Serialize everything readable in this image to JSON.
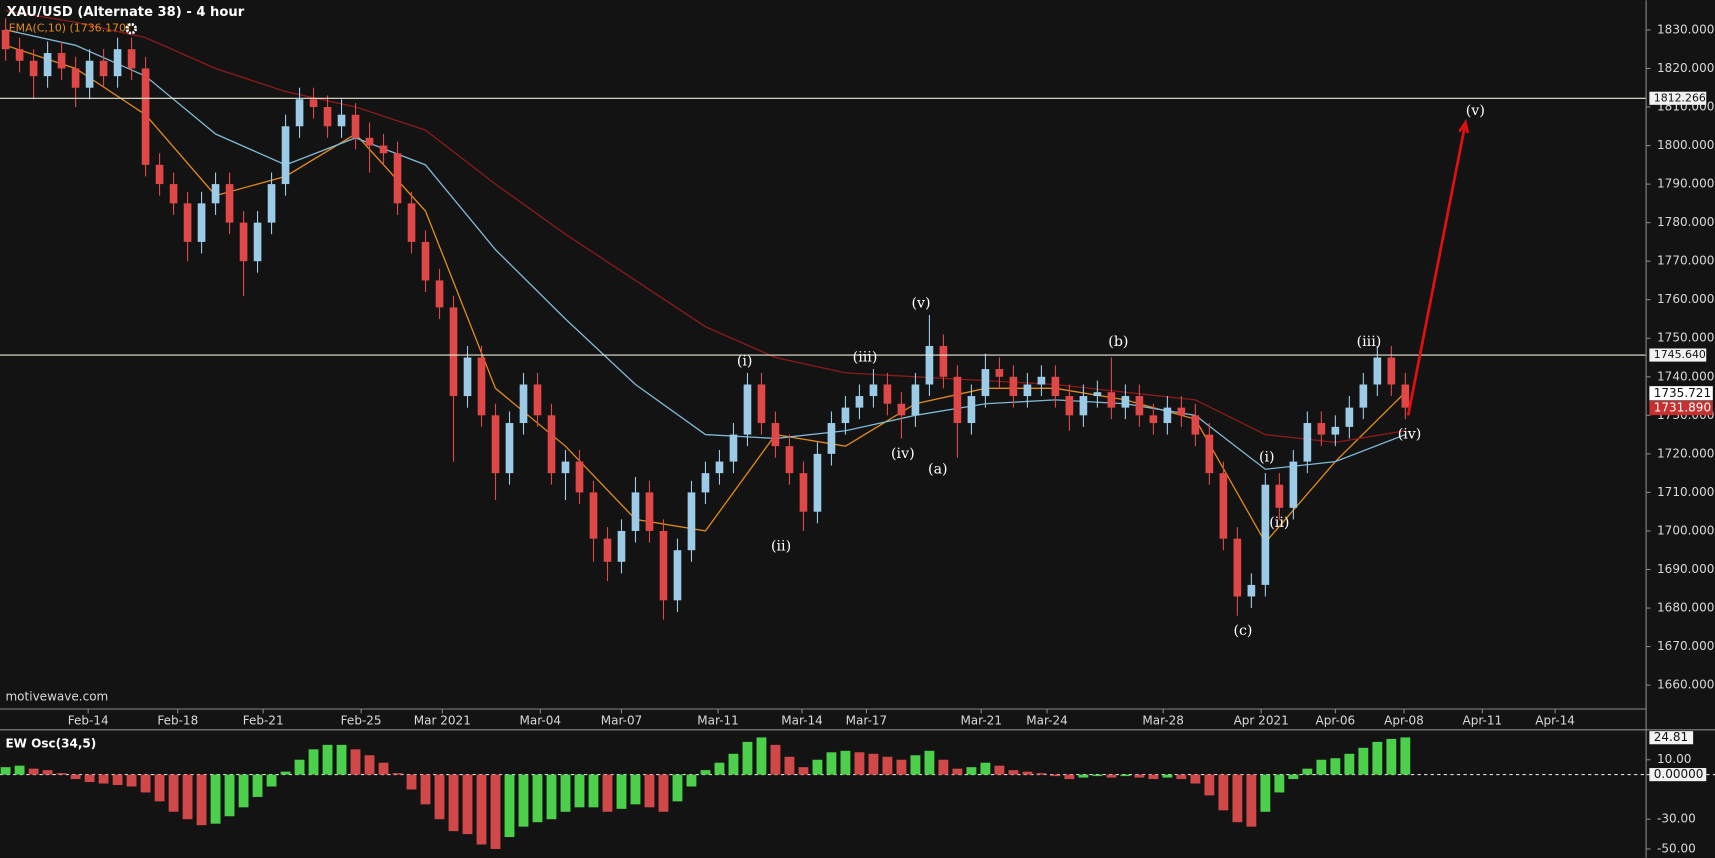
{
  "chart_data": [
    {
      "type": "candlestick",
      "title": "XAU/USD (Alternate 38) - 4 hour",
      "indicator_label": "EMA(C,10) (1736.170)",
      "watermark": "motivewave.com",
      "up_color": "#9ccbe8",
      "down_color": "#e04848",
      "xlim": [
        -0.4,
        117.2
      ],
      "ylim": [
        1653.8,
        1837.7
      ],
      "xticks": [
        {
          "value": 5.9,
          "label": "Feb-14"
        },
        {
          "value": 12.3,
          "label": "Feb-18"
        },
        {
          "value": 18.4,
          "label": "Feb-21"
        },
        {
          "value": 25.4,
          "label": "Feb-25"
        },
        {
          "value": 31.2,
          "label": "Mar 2021"
        },
        {
          "value": 38.2,
          "label": "Mar-04"
        },
        {
          "value": 44,
          "label": "Mar-07"
        },
        {
          "value": 50.9,
          "label": "Mar-11"
        },
        {
          "value": 56.9,
          "label": "Mar-14"
        },
        {
          "value": 61.5,
          "label": "Mar-17"
        },
        {
          "value": 69.7,
          "label": "Mar-21"
        },
        {
          "value": 74.4,
          "label": "Mar-24"
        },
        {
          "value": 82.7,
          "label": "Mar-28"
        },
        {
          "value": 89.7,
          "label": "Apr 2021"
        },
        {
          "value": 95,
          "label": "Apr-06"
        },
        {
          "value": 99.9,
          "label": "Apr-08"
        },
        {
          "value": 105.5,
          "label": "Apr-11"
        },
        {
          "value": 110.7,
          "label": "Apr-14"
        }
      ],
      "yticks": [
        {
          "value": 1830,
          "label": "1830.000"
        },
        {
          "value": 1820,
          "label": "1820.000"
        },
        {
          "value": 1810,
          "label": "1810.000"
        },
        {
          "value": 1800,
          "label": "1800.000"
        },
        {
          "value": 1790,
          "label": "1790.000"
        },
        {
          "value": 1780,
          "label": "1780.000"
        },
        {
          "value": 1770,
          "label": "1770.000"
        },
        {
          "value": 1760,
          "label": "1760.000"
        },
        {
          "value": 1750,
          "label": "1750.000"
        },
        {
          "value": 1740,
          "label": "1740.000"
        },
        {
          "value": 1730,
          "label": "1730.000"
        },
        {
          "value": 1720,
          "label": "1720.000"
        },
        {
          "value": 1710,
          "label": "1710.000"
        },
        {
          "value": 1700,
          "label": "1700.000"
        },
        {
          "value": 1690,
          "label": "1690.000"
        },
        {
          "value": 1680,
          "label": "1680.000"
        },
        {
          "value": 1670,
          "label": "1670.000"
        },
        {
          "value": 1660,
          "label": "1660.000"
        }
      ],
      "ohlc": [
        [
          1830,
          1833,
          1822,
          1825
        ],
        [
          1825,
          1828,
          1819,
          1822
        ],
        [
          1822,
          1825,
          1812,
          1818
        ],
        [
          1818,
          1827,
          1815,
          1824
        ],
        [
          1824,
          1827,
          1817,
          1820
        ],
        [
          1820,
          1823,
          1810,
          1815
        ],
        [
          1815,
          1825,
          1812,
          1822
        ],
        [
          1822,
          1825,
          1815,
          1818
        ],
        [
          1818,
          1828,
          1815,
          1825
        ],
        [
          1825,
          1828,
          1817,
          1820
        ],
        [
          1820,
          1823,
          1792,
          1795
        ],
        [
          1795,
          1798,
          1787,
          1790
        ],
        [
          1790,
          1793,
          1782,
          1785
        ],
        [
          1785,
          1788,
          1770,
          1775
        ],
        [
          1775,
          1788,
          1772,
          1785
        ],
        [
          1785,
          1793,
          1782,
          1790
        ],
        [
          1790,
          1793,
          1777,
          1780
        ],
        [
          1780,
          1783,
          1761,
          1770
        ],
        [
          1770,
          1783,
          1767,
          1780
        ],
        [
          1780,
          1793,
          1777,
          1790
        ],
        [
          1790,
          1808,
          1787,
          1805
        ],
        [
          1805,
          1815,
          1802,
          1812
        ],
        [
          1812,
          1815,
          1807,
          1810
        ],
        [
          1810,
          1813,
          1802,
          1805
        ],
        [
          1805,
          1812,
          1802,
          1808
        ],
        [
          1808,
          1811,
          1799,
          1802
        ],
        [
          1802,
          1806,
          1793,
          1800
        ],
        [
          1800,
          1803,
          1795,
          1798
        ],
        [
          1798,
          1801,
          1782,
          1785
        ],
        [
          1785,
          1788,
          1772,
          1775
        ],
        [
          1775,
          1778,
          1762,
          1765
        ],
        [
          1765,
          1768,
          1755,
          1758
        ],
        [
          1758,
          1761,
          1718,
          1735
        ],
        [
          1735,
          1748,
          1732,
          1745
        ],
        [
          1745,
          1748,
          1727,
          1730
        ],
        [
          1730,
          1733,
          1708,
          1715
        ],
        [
          1715,
          1731,
          1712,
          1728
        ],
        [
          1728,
          1741,
          1725,
          1738
        ],
        [
          1738,
          1741,
          1727,
          1730
        ],
        [
          1730,
          1733,
          1712,
          1715
        ],
        [
          1715,
          1721,
          1708,
          1718
        ],
        [
          1718,
          1721,
          1707,
          1710
        ],
        [
          1710,
          1713,
          1692,
          1698
        ],
        [
          1698,
          1701,
          1687,
          1692
        ],
        [
          1692,
          1703,
          1689,
          1700
        ],
        [
          1700,
          1714,
          1697,
          1710
        ],
        [
          1710,
          1713,
          1697,
          1700
        ],
        [
          1700,
          1703,
          1677,
          1682
        ],
        [
          1682,
          1698,
          1679,
          1695
        ],
        [
          1695,
          1713,
          1692,
          1710
        ],
        [
          1710,
          1718,
          1707,
          1715
        ],
        [
          1715,
          1721,
          1712,
          1718
        ],
        [
          1718,
          1728,
          1715,
          1725
        ],
        [
          1725,
          1741,
          1722,
          1738
        ],
        [
          1738,
          1741,
          1725,
          1728
        ],
        [
          1728,
          1731,
          1719,
          1722
        ],
        [
          1722,
          1725,
          1712,
          1715
        ],
        [
          1715,
          1718,
          1700,
          1705
        ],
        [
          1705,
          1723,
          1702,
          1720
        ],
        [
          1720,
          1731,
          1717,
          1728
        ],
        [
          1728,
          1735,
          1725,
          1732
        ],
        [
          1732,
          1738,
          1729,
          1735
        ],
        [
          1735,
          1742,
          1732,
          1738
        ],
        [
          1738,
          1741,
          1730,
          1733
        ],
        [
          1733,
          1736,
          1724,
          1730
        ],
        [
          1730,
          1741,
          1727,
          1738
        ],
        [
          1738,
          1756,
          1735,
          1748
        ],
        [
          1748,
          1751,
          1737,
          1740
        ],
        [
          1740,
          1743,
          1719,
          1728
        ],
        [
          1728,
          1738,
          1725,
          1735
        ],
        [
          1735,
          1746,
          1732,
          1742
        ],
        [
          1742,
          1745,
          1737,
          1740
        ],
        [
          1740,
          1743,
          1732,
          1735
        ],
        [
          1735,
          1741,
          1732,
          1738
        ],
        [
          1738,
          1743,
          1735,
          1740
        ],
        [
          1740,
          1743,
          1732,
          1735
        ],
        [
          1735,
          1738,
          1726,
          1730
        ],
        [
          1730,
          1738,
          1727,
          1735
        ],
        [
          1735,
          1739,
          1732,
          1736
        ],
        [
          1736,
          1745,
          1729,
          1732
        ],
        [
          1732,
          1738,
          1729,
          1735
        ],
        [
          1735,
          1738,
          1727,
          1730
        ],
        [
          1730,
          1733,
          1725,
          1728
        ],
        [
          1728,
          1735,
          1725,
          1732
        ],
        [
          1732,
          1735,
          1727,
          1730
        ],
        [
          1730,
          1733,
          1722,
          1725
        ],
        [
          1725,
          1728,
          1712,
          1715
        ],
        [
          1715,
          1718,
          1695,
          1698
        ],
        [
          1698,
          1701,
          1678,
          1683
        ],
        [
          1683,
          1689,
          1680,
          1686
        ],
        [
          1686,
          1715,
          1683,
          1712
        ],
        [
          1712,
          1715,
          1703,
          1706
        ],
        [
          1706,
          1721,
          1703,
          1718
        ],
        [
          1718,
          1731,
          1715,
          1728
        ],
        [
          1728,
          1731,
          1722,
          1725
        ],
        [
          1725,
          1730,
          1722,
          1727
        ],
        [
          1727,
          1735,
          1724,
          1732
        ],
        [
          1732,
          1741,
          1729,
          1738
        ],
        [
          1738,
          1748,
          1735,
          1745
        ],
        [
          1745,
          1748,
          1735,
          1738
        ],
        [
          1738,
          1741,
          1729,
          1732
        ]
      ],
      "lines": [
        {
          "color": "#e08a1a",
          "x": [
            0,
            5,
            10,
            15,
            20,
            25,
            30,
            35,
            40,
            45,
            50,
            55,
            60,
            65,
            70,
            75,
            80,
            85,
            90,
            95,
            100
          ],
          "values": [
            1826,
            1820,
            1808,
            1787,
            1792,
            1803,
            1783,
            1737,
            1722,
            1703,
            1700,
            1725,
            1722,
            1733,
            1737,
            1737,
            1734,
            1729,
            1697,
            1718,
            1736
          ]
        },
        {
          "color": "#7fb8d4",
          "x": [
            0,
            5,
            10,
            15,
            20,
            25,
            30,
            35,
            40,
            45,
            50,
            55,
            60,
            65,
            70,
            75,
            80,
            85,
            90,
            95,
            100
          ],
          "values": [
            1830,
            1826,
            1818,
            1803,
            1795,
            1802,
            1795,
            1773,
            1755,
            1738,
            1725,
            1724,
            1726,
            1730,
            1733,
            1734,
            1733,
            1730,
            1716,
            1718,
            1725
          ]
        },
        {
          "color": "#8b1a1a",
          "x": [
            0,
            5,
            10,
            15,
            20,
            25,
            30,
            35,
            40,
            45,
            50,
            55,
            60,
            65,
            70,
            75,
            80,
            85,
            90,
            95,
            100
          ],
          "values": [
            1835,
            1832,
            1828,
            1820,
            1814,
            1810,
            1804,
            1790,
            1777,
            1765,
            1753,
            1745,
            1741,
            1740,
            1739,
            1738,
            1736,
            1734,
            1725,
            1723,
            1726
          ]
        }
      ],
      "hlines": [
        1812.266,
        {
          "value": 1745.64,
          "label": "1745.640"
        }
      ],
      "price_labels": [
        {
          "value": 1735.721,
          "color": "#ffffff"
        },
        {
          "value": 1731.89,
          "label": "1731.890",
          "color": "#c83030"
        }
      ],
      "annotations": [
        {
          "text": "(i)",
          "x": 52.8,
          "y": 1744
        },
        {
          "text": "(ii)",
          "x": 55.4,
          "y": 1696
        },
        {
          "text": "(iii)",
          "x": 61.4,
          "y": 1745
        },
        {
          "text": "(iv)",
          "x": 64.1,
          "y": 1720
        },
        {
          "text": "(v)",
          "x": 65.4,
          "y": 1759
        },
        {
          "text": "(a)",
          "x": 66.6,
          "y": 1716
        },
        {
          "text": "(b)",
          "x": 79.5,
          "y": 1749
        },
        {
          "text": "(c)",
          "x": 88.4,
          "y": 1674
        },
        {
          "text": "(i)",
          "x": 90.1,
          "y": 1719
        },
        {
          "text": "(ii)",
          "x": 91,
          "y": 1702
        },
        {
          "text": "(iii)",
          "x": 97.4,
          "y": 1749
        },
        {
          "text": "(iv)",
          "x": 100.3,
          "y": 1725
        },
        {
          "text": "(v)",
          "x": 105,
          "y": 1809
        }
      ],
      "arrow": {
        "color": "#e01010",
        "x": [
          100.2,
          104.3
        ],
        "y": [
          1730,
          1806
        ]
      }
    },
    {
      "type": "bar",
      "title": "EW Osc(34,5)",
      "up_color": "#4cd04c",
      "down_color": "#d04848",
      "ylim": [
        -55.9,
        29.4
      ],
      "yticks": [
        {
          "value": 10,
          "label": "10.00"
        },
        {
          "value": 0,
          "label": "0.00000"
        },
        {
          "value": -30,
          "label": "-30.00"
        },
        {
          "value": -50,
          "label": "-50.00"
        }
      ],
      "price_labels": [
        24.81
      ],
      "values": [
        5,
        6,
        4,
        3,
        1,
        -3,
        -5,
        -6,
        -7,
        -8,
        -12,
        -18,
        -25,
        -30,
        -34,
        -33,
        -28,
        -22,
        -15,
        -8,
        2,
        10,
        17,
        20,
        20,
        17,
        13,
        8,
        1,
        -10,
        -20,
        -30,
        -38,
        -40,
        -47,
        -50,
        -42,
        -35,
        -32,
        -30,
        -25,
        -22,
        -22,
        -25,
        -23,
        -20,
        -22,
        -25,
        -18,
        -8,
        3,
        8,
        14,
        22,
        25,
        20,
        12,
        5,
        10,
        15,
        16,
        15,
        14,
        12,
        10,
        13,
        16,
        10,
        4,
        5,
        8,
        6,
        3,
        2,
        1,
        -1,
        -3,
        -2,
        -1,
        -2,
        -1,
        -2,
        -3,
        -2,
        -3,
        -6,
        -14,
        -24,
        -32,
        -35,
        -25,
        -12,
        -3,
        4,
        10,
        11,
        14,
        18,
        22,
        24,
        25
      ]
    }
  ]
}
